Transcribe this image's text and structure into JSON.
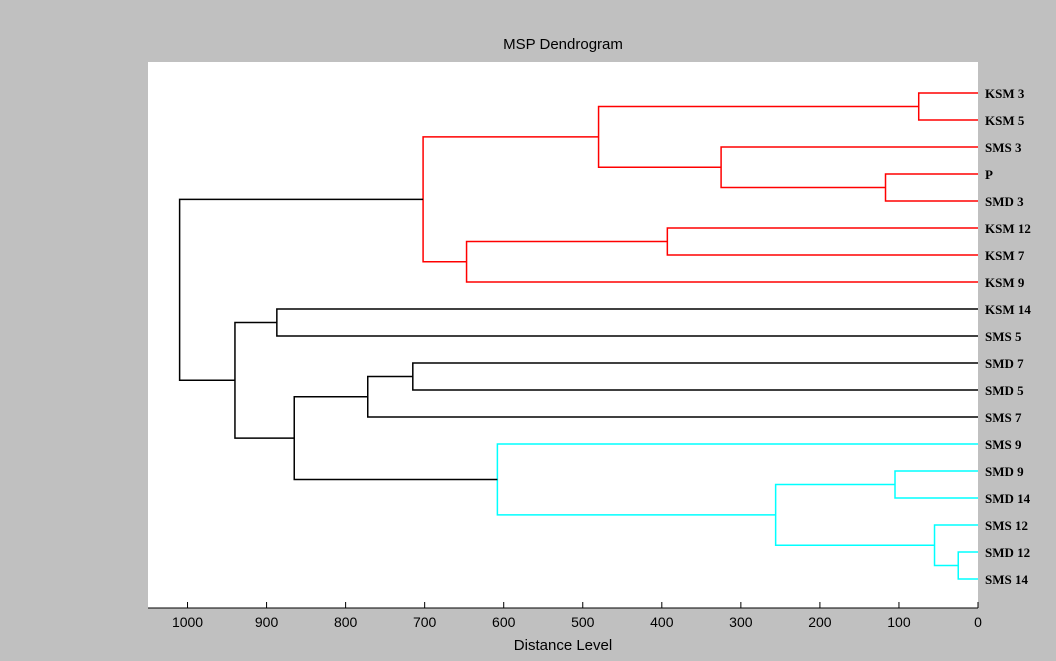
{
  "chart_data": {
    "type": "dendrogram",
    "title": "MSP Dendrogram",
    "xlabel": "Distance Level",
    "ylabel": "",
    "xlim": [
      1050,
      0
    ],
    "x_ticks": [
      1000,
      900,
      800,
      700,
      600,
      500,
      400,
      300,
      200,
      100,
      0
    ],
    "x_tick_labels": [
      "1000",
      "900",
      "800",
      "700",
      "600",
      "500",
      "400",
      "300",
      "200",
      "100",
      "0"
    ],
    "grid": false,
    "leaves": [
      "KSM 3",
      "KSM 5",
      "SMS 3",
      "P",
      "SMD 3",
      "KSM 12",
      "KSM 7",
      "KSM 9",
      "KSM 14",
      "SMS 5",
      "SMD 7",
      "SMD 5",
      "SMS 7",
      "SMS 9",
      "SMD 9",
      "SMD 14",
      "SMS 12",
      "SMD 12",
      "SMS 14"
    ],
    "merges": [
      {
        "id": "A",
        "left": "KSM 3",
        "right": "KSM 5",
        "distance": 75,
        "color": "#ff0000"
      },
      {
        "id": "B",
        "left": "P",
        "right": "SMD 3",
        "distance": 117,
        "color": "#ff0000"
      },
      {
        "id": "C",
        "left": "SMS 3",
        "right": "B",
        "distance": 325,
        "color": "#ff0000"
      },
      {
        "id": "D",
        "left": "A",
        "right": "C",
        "distance": 480,
        "color": "#ff0000"
      },
      {
        "id": "E",
        "left": "KSM 12",
        "right": "KSM 7",
        "distance": 393,
        "color": "#ff0000"
      },
      {
        "id": "F",
        "left": "E",
        "right": "KSM 9",
        "distance": 647,
        "color": "#ff0000"
      },
      {
        "id": "G",
        "left": "D",
        "right": "F",
        "distance": 702,
        "color": "#ff0000"
      },
      {
        "id": "H",
        "left": "KSM 14",
        "right": "SMS 5",
        "distance": 887,
        "color": "#000000"
      },
      {
        "id": "I",
        "left": "SMD 7",
        "right": "SMD 5",
        "distance": 715,
        "color": "#000000"
      },
      {
        "id": "J",
        "left": "I",
        "right": "SMS 7",
        "distance": 772,
        "color": "#000000"
      },
      {
        "id": "K",
        "left": "SMD 9",
        "right": "SMD 14",
        "distance": 105,
        "color": "#00ffff"
      },
      {
        "id": "L",
        "left": "SMD 12",
        "right": "SMS 14",
        "distance": 25,
        "color": "#00ffff"
      },
      {
        "id": "M",
        "left": "SMS 12",
        "right": "L",
        "distance": 55,
        "color": "#00ffff"
      },
      {
        "id": "N",
        "left": "K",
        "right": "M",
        "distance": 256,
        "color": "#00ffff"
      },
      {
        "id": "O",
        "left": "SMS 9",
        "right": "N",
        "distance": 608,
        "color": "#00ffff"
      },
      {
        "id": "Q",
        "left": "J",
        "right": "O",
        "distance": 865,
        "color": "#000000"
      },
      {
        "id": "R",
        "left": "H",
        "right": "Q",
        "distance": 940,
        "color": "#000000"
      },
      {
        "id": "S",
        "left": "G",
        "right": "R",
        "distance": 1010,
        "color": "#000000"
      }
    ]
  }
}
